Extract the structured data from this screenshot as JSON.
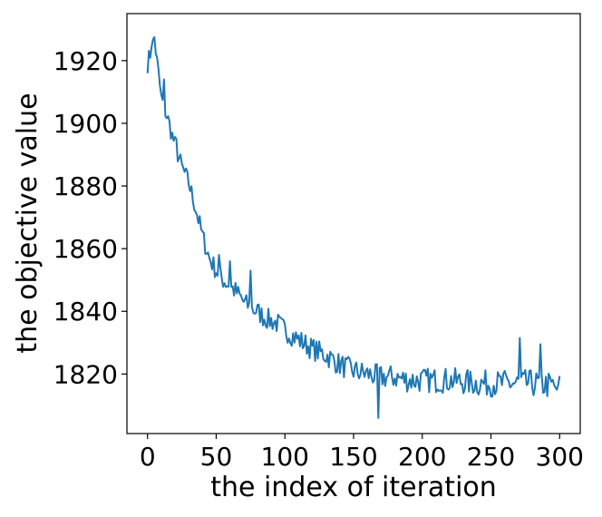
{
  "chart_data": {
    "type": "line",
    "title": "",
    "xlabel": "the index of iteration",
    "ylabel": "the objective value",
    "xlim": [
      -15,
      315
    ],
    "ylim": [
      1801,
      1935
    ],
    "xticks": [
      0,
      50,
      100,
      150,
      200,
      250,
      300
    ],
    "yticks": [
      1820,
      1840,
      1860,
      1880,
      1900,
      1920
    ],
    "grid": false,
    "legend": "none",
    "colors": {
      "line": "#1f77b4",
      "axes": "#000000"
    },
    "anchors": [
      [
        0,
        1919.0
      ],
      [
        5,
        1927.0
      ],
      [
        10,
        1908.0
      ],
      [
        15,
        1901.0
      ],
      [
        20,
        1893.0
      ],
      [
        25,
        1886.0
      ],
      [
        30,
        1881.0
      ],
      [
        35,
        1873.0
      ],
      [
        40,
        1864.0
      ],
      [
        45,
        1857.0
      ],
      [
        50,
        1853.0
      ],
      [
        55,
        1850.0
      ],
      [
        60,
        1848.0
      ],
      [
        65,
        1846.0
      ],
      [
        70,
        1843.0
      ],
      [
        75,
        1841.0
      ],
      [
        80,
        1840.0
      ],
      [
        85,
        1838.0
      ],
      [
        90,
        1837.0
      ],
      [
        95,
        1836.0
      ],
      [
        100,
        1834.0
      ],
      [
        110,
        1831.0
      ],
      [
        120,
        1828.0
      ],
      [
        130,
        1826.0
      ],
      [
        140,
        1823.0
      ],
      [
        150,
        1821.0
      ],
      [
        160,
        1820.0
      ],
      [
        170,
        1819.0
      ],
      [
        180,
        1819.0
      ],
      [
        190,
        1818.0
      ],
      [
        200,
        1818.0
      ],
      [
        220,
        1818.0
      ],
      [
        240,
        1817.0
      ],
      [
        260,
        1817.0
      ],
      [
        280,
        1817.0
      ],
      [
        300,
        1816.0
      ]
    ],
    "noise": {
      "amplitude_start": 3.0,
      "amplitude_end": 4.5,
      "seed": 7
    },
    "spikes": [
      [
        3,
        1924.5
      ],
      [
        5,
        1927.5
      ],
      [
        12,
        1914.0
      ],
      [
        18,
        1897.0
      ],
      [
        21,
        1895.0
      ],
      [
        52,
        1858.0
      ],
      [
        60,
        1856.0
      ],
      [
        75,
        1853.0
      ],
      [
        168,
        1806.0
      ],
      [
        271,
        1831.5
      ],
      [
        286,
        1829.5
      ],
      [
        298,
        1815.0
      ]
    ]
  }
}
